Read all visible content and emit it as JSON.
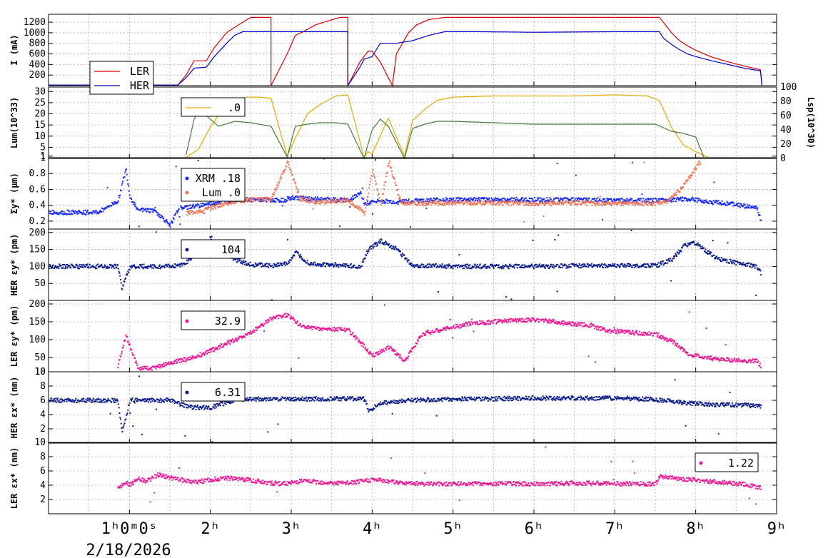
{
  "chart_data": {
    "type": "line",
    "x_axis": {
      "tick_labels": [
        "1h0m0s",
        "2h",
        "3h",
        "4h",
        "5h",
        "6h",
        "7h",
        "8h",
        "9h"
      ],
      "tick_hours": [
        1,
        2,
        3,
        4,
        5,
        6,
        7,
        8,
        9
      ],
      "date_label": "2/18/2026",
      "range_hours": [
        0.0,
        9.0
      ]
    },
    "panels": [
      {
        "id": "current",
        "ylabel": "I (mA)",
        "ylim": [
          0,
          1350
        ],
        "yticks": [
          200,
          400,
          600,
          800,
          1000,
          1200
        ],
        "grid": true,
        "legend": {
          "position": "bottom-left",
          "entries": [
            "LER",
            "HER"
          ]
        },
        "series": [
          {
            "name": "LER",
            "color": "#dd0000",
            "style": "line",
            "x": [
              0.0,
              1.6,
              1.7,
              1.8,
              1.95,
              2.05,
              2.2,
              2.35,
              2.5,
              2.75,
              2.75,
              2.95,
              3.05,
              3.15,
              3.3,
              3.45,
              3.6,
              3.7,
              3.7,
              3.85,
              3.95,
              4.0,
              4.1,
              4.25,
              4.3,
              4.45,
              4.55,
              4.7,
              4.9,
              5.3,
              6.0,
              7.0,
              7.55,
              7.6,
              7.7,
              7.8,
              7.9,
              8.0,
              8.2,
              8.4,
              8.6,
              8.8,
              8.82
            ],
            "y": [
              12,
              12,
              200,
              470,
              470,
              720,
              1000,
              1150,
              1290,
              1290,
              0,
              600,
              950,
              1020,
              1150,
              1220,
              1290,
              1290,
              0,
              450,
              650,
              650,
              450,
              0,
              600,
              1000,
              1150,
              1250,
              1290,
              1290,
              1290,
              1290,
              1290,
              1200,
              1000,
              850,
              750,
              670,
              540,
              450,
              370,
              300,
              0
            ]
          },
          {
            "name": "HER",
            "color": "#0000cc",
            "style": "line",
            "x": [
              0.0,
              1.6,
              1.7,
              1.8,
              1.95,
              2.05,
              2.2,
              2.3,
              2.4,
              2.6,
              3.0,
              3.2,
              3.4,
              3.7,
              3.7,
              3.85,
              3.9,
              4.0,
              4.1,
              4.3,
              4.5,
              4.7,
              4.9,
              5.3,
              6.0,
              7.0,
              7.55,
              7.6,
              7.7,
              7.8,
              7.9,
              8.0,
              8.2,
              8.4,
              8.6,
              8.8,
              8.82
            ],
            "y": [
              12,
              12,
              150,
              330,
              350,
              550,
              800,
              950,
              1020,
              1020,
              1020,
              1020,
              1020,
              1020,
              0,
              350,
              500,
              550,
              800,
              800,
              850,
              950,
              1020,
              1020,
              1010,
              1020,
              1020,
              900,
              780,
              680,
              600,
              550,
              470,
              400,
              330,
              280,
              0
            ]
          }
        ]
      },
      {
        "id": "luminosity",
        "ylabel": "Lum(10^33)",
        "ylim": [
          0,
          32
        ],
        "yticks": [
          1,
          5,
          10,
          15,
          20,
          25,
          30
        ],
        "y2label": "Lsp(10^30)",
        "y2lim": [
          0,
          100
        ],
        "y2ticks": [
          0,
          20,
          40,
          60,
          80,
          100
        ],
        "grid": true,
        "legend": {
          "position": "top-left",
          "entries": [
            ".0"
          ]
        },
        "series": [
          {
            "name": "Lum",
            "color": "#e6a800",
            "style": "line",
            "x": [
              1.7,
              1.85,
              2.0,
              2.15,
              2.3,
              2.45,
              2.6,
              2.75,
              2.95,
              3.05,
              3.2,
              3.35,
              3.55,
              3.7,
              3.9,
              3.95,
              4.0,
              4.1,
              4.2,
              4.4,
              4.5,
              4.65,
              4.8,
              5.0,
              5.5,
              6.0,
              6.5,
              7.0,
              7.4,
              7.55,
              7.7,
              7.85,
              8.0,
              8.15
            ],
            "y": [
              0.5,
              4,
              14,
              22,
              26,
              27.5,
              27.5,
              27,
              1,
              9,
              20,
              24,
              28,
              28.5,
              0.5,
              3,
              2,
              10,
              18,
              1,
              17,
              22,
              26,
              27.5,
              28,
              28,
              28,
              28.5,
              28,
              26,
              14,
              6,
              3,
              0.5
            ]
          },
          {
            "name": "Lsp",
            "color": "#4a7a3a",
            "style": "line",
            "y_axis": "right",
            "x": [
              1.7,
              1.8,
              1.85,
              1.95,
              2.1,
              2.3,
              2.5,
              2.75,
              2.95,
              3.05,
              3.2,
              3.35,
              3.55,
              3.7,
              3.9,
              4.0,
              4.1,
              4.2,
              4.4,
              4.5,
              4.65,
              4.8,
              5.0,
              5.5,
              6.0,
              6.5,
              7.0,
              7.5,
              7.7,
              7.85,
              8.0,
              8.1
            ],
            "y": [
              5,
              55,
              65,
              60,
              45,
              52,
              50,
              45,
              2,
              45,
              48,
              50,
              50,
              48,
              0,
              40,
              55,
              45,
              0,
              42,
              48,
              52,
              52,
              50,
              48,
              48,
              48,
              48,
              38,
              35,
              30,
              2
            ]
          }
        ]
      },
      {
        "id": "sigma_y",
        "ylabel": "Σy* (μm)",
        "ylim": [
          0.1,
          1.0
        ],
        "yticks": [
          0.2,
          0.4,
          0.6,
          0.8,
          1
        ],
        "grid": true,
        "legend": {
          "position": "top-left",
          "entries": [
            "XRM  .18",
            "Lum  .0"
          ]
        },
        "series": [
          {
            "name": "XRM",
            "color": "#1428ff",
            "style": "points",
            "x": [
              0.0,
              0.6,
              0.85,
              0.95,
              1.0,
              1.1,
              1.3,
              1.5,
              1.6,
              1.75,
              2.0,
              2.3,
              2.7,
              2.9,
              3.0,
              3.2,
              3.5,
              3.7,
              3.85,
              3.9,
              4.05,
              4.3,
              4.5,
              5.0,
              5.5,
              6.0,
              6.5,
              7.0,
              7.5,
              7.75,
              7.9,
              8.1,
              8.4,
              8.6,
              8.75,
              8.8
            ],
            "y": [
              0.31,
              0.31,
              0.45,
              0.85,
              0.5,
              0.34,
              0.33,
              0.15,
              0.36,
              0.38,
              0.42,
              0.47,
              0.47,
              0.46,
              0.5,
              0.48,
              0.47,
              0.47,
              0.55,
              0.42,
              0.45,
              0.44,
              0.46,
              0.47,
              0.47,
              0.47,
              0.47,
              0.46,
              0.46,
              0.47,
              0.48,
              0.45,
              0.42,
              0.39,
              0.36,
              0.2
            ]
          },
          {
            "name": "Lum",
            "color": "#f07050",
            "style": "points",
            "x": [
              1.7,
              1.9,
              2.1,
              2.3,
              2.5,
              2.75,
              2.95,
              3.1,
              3.3,
              3.5,
              3.7,
              3.9,
              4.0,
              4.1,
              4.2,
              4.35,
              4.45,
              4.6,
              5.0,
              5.5,
              6.0,
              6.5,
              7.0,
              7.5,
              7.65,
              7.8,
              7.95,
              8.05
            ],
            "y": [
              0.3,
              0.33,
              0.4,
              0.45,
              0.47,
              0.48,
              0.95,
              0.48,
              0.44,
              0.45,
              0.46,
              0.3,
              0.85,
              0.4,
              0.95,
              0.42,
              0.43,
              0.42,
              0.43,
              0.43,
              0.42,
              0.43,
              0.42,
              0.42,
              0.45,
              0.6,
              0.8,
              0.95
            ]
          }
        ]
      },
      {
        "id": "her_eps_y",
        "ylabel": "HER εy* (pm)",
        "ylim": [
          0,
          210
        ],
        "yticks": [
          50,
          100,
          150,
          200
        ],
        "grid": true,
        "legend": {
          "position": "top-left",
          "entries": [
            "104"
          ]
        },
        "series": [
          {
            "name": "HER εy*",
            "color": "#0a1a8c",
            "style": "points",
            "x": [
              0.0,
              0.6,
              0.85,
              0.9,
              1.0,
              1.3,
              1.5,
              1.65,
              1.85,
              2.0,
              2.1,
              2.3,
              2.5,
              2.75,
              2.95,
              3.05,
              3.2,
              3.5,
              3.7,
              3.85,
              3.95,
              4.1,
              4.3,
              4.5,
              5.0,
              5.5,
              6.0,
              6.5,
              7.0,
              7.5,
              7.7,
              7.85,
              8.0,
              8.15,
              8.3,
              8.5,
              8.75,
              8.8
            ],
            "y": [
              100,
              100,
              100,
              35,
              100,
              100,
              100,
              105,
              140,
              185,
              150,
              120,
              105,
              102,
              110,
              140,
              110,
              102,
              102,
              100,
              150,
              175,
              150,
              102,
              100,
              100,
              100,
              102,
              102,
              102,
              120,
              160,
              170,
              140,
              120,
              110,
              100,
              80
            ]
          }
        ]
      },
      {
        "id": "ler_eps_y",
        "ylabel": "LER εy* (pm)",
        "ylim": [
          10,
          210
        ],
        "yticks": [
          10,
          50,
          100,
          150,
          200
        ],
        "grid": true,
        "legend": {
          "position": "top-left",
          "entries": [
            "32.9"
          ]
        },
        "series": [
          {
            "name": "LER εy*",
            "color": "#ee1493",
            "style": "points",
            "x": [
              0.85,
              0.95,
              1.1,
              1.3,
              1.5,
              1.7,
              1.9,
              2.1,
              2.3,
              2.5,
              2.75,
              2.95,
              3.1,
              3.3,
              3.5,
              3.7,
              3.9,
              4.0,
              4.2,
              4.4,
              4.6,
              4.9,
              5.2,
              5.5,
              5.8,
              6.1,
              6.4,
              6.7,
              6.9,
              7.2,
              7.5,
              7.7,
              7.9,
              8.1,
              8.3,
              8.5,
              8.75,
              8.8
            ],
            "y": [
              25,
              110,
              20,
              20,
              35,
              45,
              60,
              80,
              100,
              120,
              160,
              170,
              140,
              130,
              130,
              125,
              80,
              55,
              80,
              40,
              115,
              130,
              145,
              150,
              155,
              155,
              145,
              140,
              125,
              120,
              115,
              95,
              60,
              50,
              45,
              42,
              40,
              25
            ]
          }
        ]
      },
      {
        "id": "her_eps_x",
        "ylabel": "HER εx* (nm)",
        "ylim": [
          0,
          10
        ],
        "yticks": [
          2,
          4,
          6,
          8,
          10
        ],
        "grid": true,
        "legend": {
          "position": "top-left",
          "entries": [
            "6.31"
          ]
        },
        "series": [
          {
            "name": "HER εx*",
            "color": "#0a1a8c",
            "style": "points",
            "x": [
              0.0,
              0.6,
              0.85,
              0.9,
              1.0,
              1.3,
              1.5,
              1.6,
              1.75,
              2.0,
              2.3,
              2.7,
              3.0,
              3.5,
              3.7,
              3.9,
              3.95,
              4.1,
              4.5,
              5.0,
              5.5,
              6.0,
              6.5,
              7.0,
              7.5,
              7.8,
              8.0,
              8.3,
              8.6,
              8.8
            ],
            "y": [
              6.0,
              6.0,
              6.0,
              1.5,
              6.0,
              6.0,
              6.0,
              5.5,
              5.0,
              5.0,
              6.1,
              6.2,
              6.2,
              6.2,
              6.2,
              6.2,
              4.5,
              5.6,
              6.0,
              6.2,
              6.2,
              6.3,
              6.3,
              6.3,
              6.1,
              5.7,
              5.5,
              5.4,
              5.3,
              5.2
            ]
          }
        ]
      },
      {
        "id": "ler_eps_x",
        "ylabel": "LER εx* (nm)",
        "ylim": [
          0,
          10
        ],
        "yticks": [
          2,
          4,
          6,
          8,
          10
        ],
        "grid": true,
        "legend": {
          "position": "top-right",
          "entries": [
            "1.22"
          ]
        },
        "series": [
          {
            "name": "LER εx*",
            "color": "#ee1493",
            "style": "points",
            "x": [
              0.85,
              0.95,
              1.0,
              1.1,
              1.2,
              1.35,
              1.5,
              1.7,
              1.85,
              2.0,
              2.2,
              2.5,
              2.75,
              2.95,
              3.1,
              3.3,
              3.5,
              3.7,
              3.9,
              4.0,
              4.25,
              4.4,
              4.6,
              5.0,
              5.5,
              6.0,
              6.5,
              7.0,
              7.5,
              7.55,
              7.8,
              8.0,
              8.3,
              8.6,
              8.8
            ],
            "y": [
              3.5,
              4.5,
              4.0,
              5.0,
              4.5,
              5.5,
              5.0,
              4.6,
              4.5,
              4.8,
              5.0,
              4.7,
              4.3,
              4.2,
              4.6,
              4.5,
              4.3,
              4.3,
              4.6,
              4.8,
              4.5,
              4.3,
              4.2,
              4.2,
              4.2,
              4.2,
              4.3,
              4.2,
              4.2,
              5.2,
              4.9,
              4.7,
              4.4,
              4.1,
              3.7
            ]
          }
        ]
      }
    ]
  }
}
